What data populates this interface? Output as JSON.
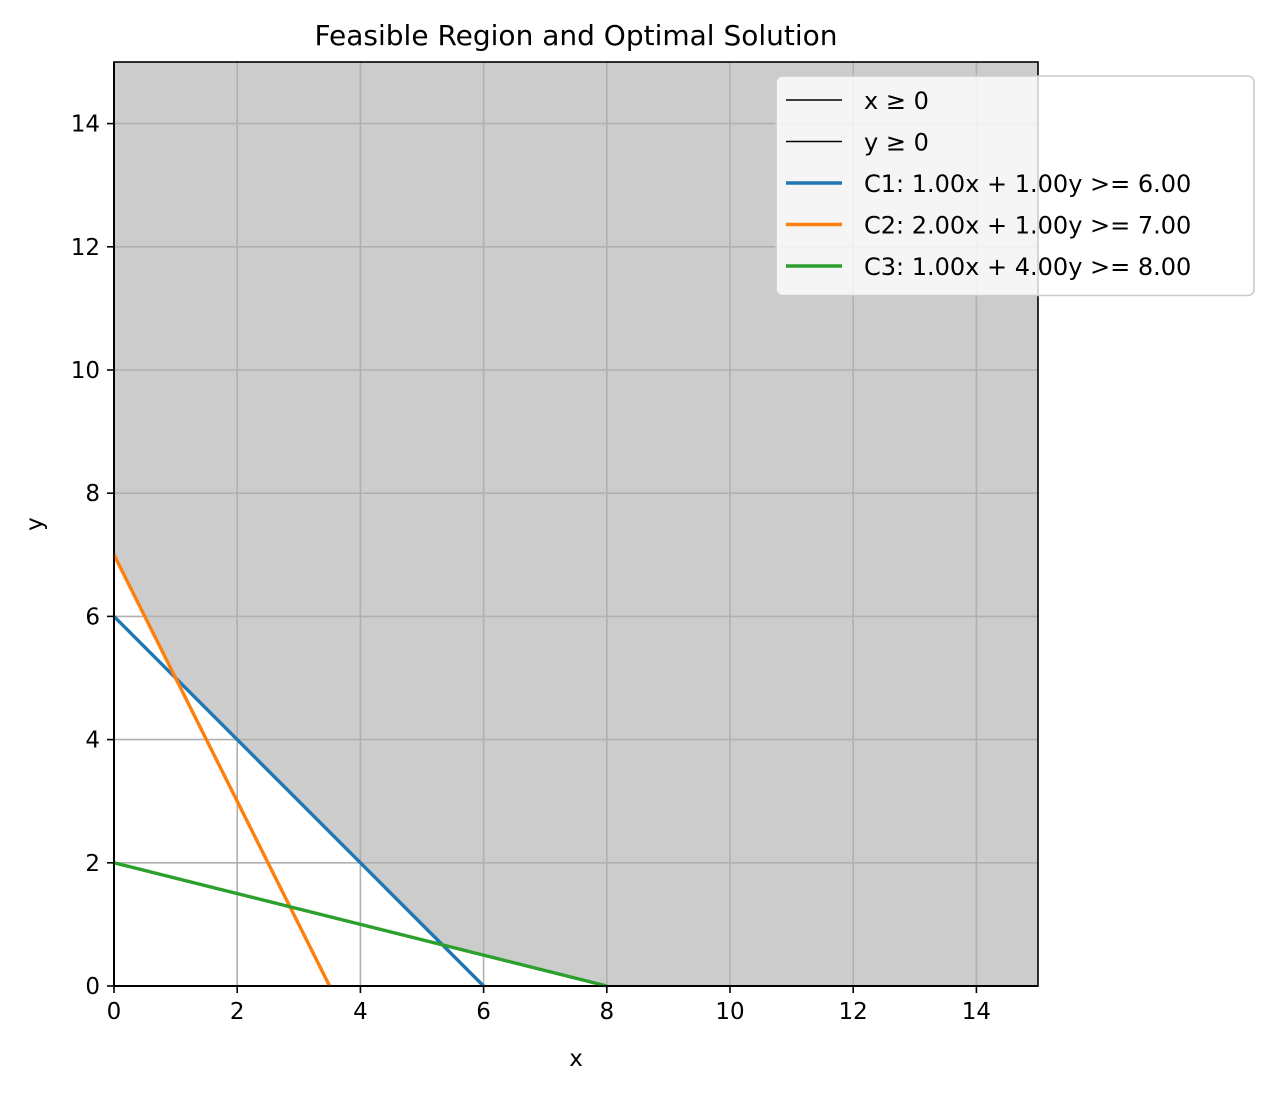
{
  "chart_data": {
    "type": "line",
    "title": "Feasible Region and Optimal Solution",
    "xlabel": "x",
    "ylabel": "y",
    "xlim": [
      0,
      15
    ],
    "ylim": [
      0,
      15
    ],
    "xticks": [
      0,
      2,
      4,
      6,
      8,
      10,
      12,
      14
    ],
    "yticks": [
      0,
      2,
      4,
      6,
      8,
      10,
      12,
      14
    ],
    "grid": true,
    "legend_position": "top-right",
    "feasible_fill_color": "#cccccc",
    "feasible_boundary": [
      [
        0,
        7
      ],
      [
        1,
        5
      ],
      [
        5.333,
        0.667
      ],
      [
        8,
        0
      ],
      [
        15,
        0
      ],
      [
        15,
        15
      ],
      [
        0,
        15
      ]
    ],
    "series": [
      {
        "name": "x ≥ 0",
        "color": "#000000",
        "style": "thin",
        "points": [
          [
            0,
            0
          ],
          [
            0,
            15
          ]
        ]
      },
      {
        "name": "y ≥ 0",
        "color": "#000000",
        "style": "thin",
        "points": [
          [
            0,
            0
          ],
          [
            15,
            0
          ]
        ]
      },
      {
        "name": "C1: 1.00x + 1.00y >= 6.00",
        "color": "#1f77b4",
        "style": "normal",
        "points": [
          [
            0,
            6
          ],
          [
            6,
            0
          ]
        ]
      },
      {
        "name": "C2: 2.00x + 1.00y >= 7.00",
        "color": "#ff7f0e",
        "style": "normal",
        "points": [
          [
            0,
            7
          ],
          [
            3.5,
            0
          ]
        ]
      },
      {
        "name": "C3: 1.00x + 4.00y >= 8.00",
        "color": "#2ca02c",
        "style": "normal",
        "points": [
          [
            0,
            2
          ],
          [
            8,
            0
          ]
        ]
      }
    ]
  }
}
